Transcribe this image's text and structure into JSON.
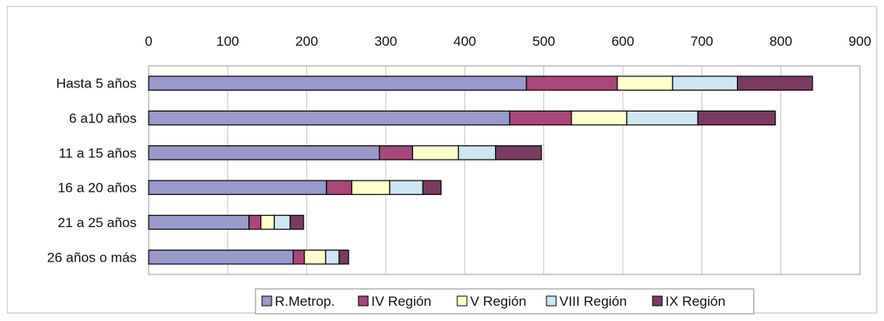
{
  "chart_data": {
    "type": "bar",
    "orientation": "horizontal",
    "stacked": true,
    "categories": [
      "Hasta 5 años",
      "6 a10 años",
      "11 a 15 años",
      "16 a 20 años",
      "21 a 25 años",
      "26 años o más"
    ],
    "series": [
      {
        "name": "R.Metrop.",
        "color": "#9999cc",
        "values": [
          478,
          457,
          292,
          225,
          127,
          183
        ]
      },
      {
        "name": "IV Región",
        "color": "#a8487a",
        "values": [
          115,
          78,
          42,
          32,
          15,
          14
        ]
      },
      {
        "name": "V Región",
        "color": "#ffffcc",
        "values": [
          70,
          70,
          58,
          48,
          17,
          27
        ]
      },
      {
        "name": "VIII Región",
        "color": "#cce6f2",
        "values": [
          82,
          90,
          47,
          42,
          20,
          17
        ]
      },
      {
        "name": "IX Región",
        "color": "#7a3b63",
        "values": [
          95,
          98,
          58,
          23,
          17,
          12
        ]
      }
    ],
    "xaxis": {
      "ticks": [
        "0",
        "100",
        "200",
        "300",
        "400",
        "500",
        "600",
        "700",
        "800",
        "900"
      ],
      "range": [
        0,
        900
      ],
      "position": "top"
    },
    "grid": true,
    "legend": "bottom"
  }
}
